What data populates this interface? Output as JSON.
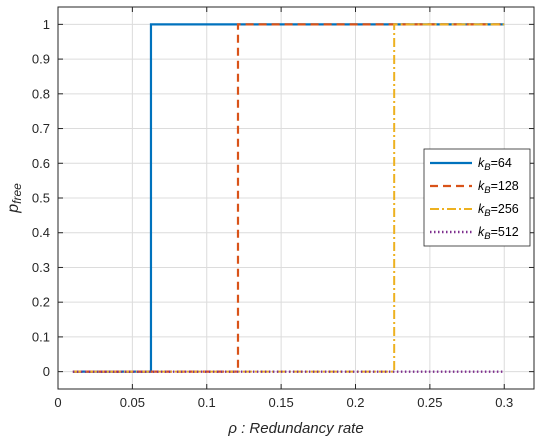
{
  "chart_data": {
    "type": "line",
    "xlabel": {
      "symbol": "ρ",
      "text": " : Redundancy rate"
    },
    "ylabel": {
      "base": "p",
      "sub": "free"
    },
    "xlim": [
      0,
      0.32
    ],
    "ylim": [
      -0.05,
      1.05
    ],
    "x_ticks": [
      0,
      0.05,
      0.1,
      0.15,
      0.2,
      0.25,
      0.3
    ],
    "x_tick_labels": [
      "0",
      "0.05",
      "0.1",
      "0.15",
      "0.2",
      "0.25",
      "0.3"
    ],
    "y_ticks": [
      0,
      0.1,
      0.2,
      0.3,
      0.4,
      0.5,
      0.6,
      0.7,
      0.8,
      0.9,
      1
    ],
    "y_tick_labels": [
      "0",
      "0.1",
      "0.2",
      "0.3",
      "0.4",
      "0.5",
      "0.6",
      "0.7",
      "0.8",
      "0.9",
      "1"
    ],
    "grid": true,
    "legend_position": "right-middle",
    "series": [
      {
        "label": {
          "base": "k",
          "sub": "B",
          "suffix": "=64"
        },
        "color": "#0072BD",
        "dash": "",
        "width": 2.2,
        "x": [
          0.01,
          0.0625,
          0.0625,
          0.3
        ],
        "y": [
          0,
          0,
          1,
          1
        ]
      },
      {
        "label": {
          "base": "k",
          "sub": "B",
          "suffix": "=128"
        },
        "color": "#D95319",
        "dash": "8,5",
        "width": 2.2,
        "x": [
          0.01,
          0.121,
          0.121,
          0.3
        ],
        "y": [
          0,
          0,
          1,
          1
        ]
      },
      {
        "label": {
          "base": "k",
          "sub": "B",
          "suffix": "=256"
        },
        "color": "#EDB120",
        "dash": "9,3,2,3",
        "width": 2.0,
        "x": [
          0.01,
          0.226,
          0.226,
          0.3
        ],
        "y": [
          0,
          0,
          1,
          1
        ]
      },
      {
        "label": {
          "base": "k",
          "sub": "B",
          "suffix": "=512"
        },
        "color": "#7E2F8E",
        "dash": "1.5,2.5",
        "width": 2.4,
        "x": [
          0.01,
          0.3
        ],
        "y": [
          0,
          0
        ]
      }
    ]
  }
}
